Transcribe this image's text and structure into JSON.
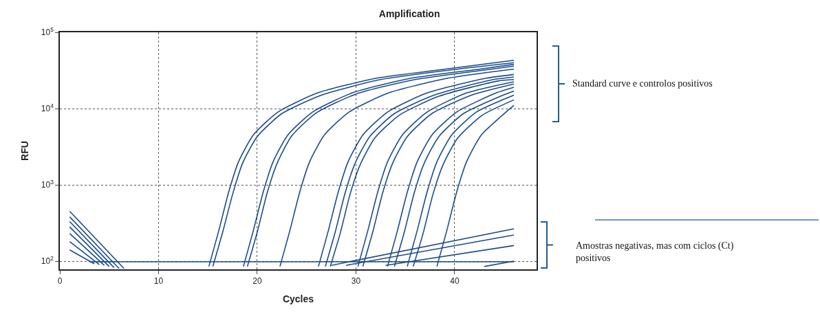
{
  "chart_data": {
    "type": "line",
    "title": "Amplification",
    "xlabel": "Cycles",
    "ylabel": "RFU",
    "xlim": [
      0,
      48.3
    ],
    "xticks": [
      0,
      10,
      20,
      30,
      40
    ],
    "ylim": [
      78,
      100000
    ],
    "log": true,
    "yticks": [
      {
        "value": 100,
        "label": "10$^{2}$"
      },
      {
        "value": 1000,
        "label": "10$^{3}$"
      },
      {
        "value": 10000,
        "label": "10$^{4}$"
      },
      {
        "value": 100000,
        "label": "10$^{5}$"
      }
    ],
    "grid": true,
    "marker": "none",
    "line_style": "solid",
    "annotations": [
      "Standard curve e controlos positivos",
      "Amostras negativas, mas com ciclos (Ct)\npositivos"
    ],
    "series": [
      {
        "color": "#1a4a8a",
        "x": [
          15.1,
          16.1,
          17.1,
          18.1,
          19.6,
          22.1,
          26.1,
          32.1,
          39.1,
          46
        ],
        "values": [
          85,
          250,
          800,
          2000,
          4500,
          9000,
          16000,
          25000,
          33000,
          43000
        ]
      },
      {
        "color": "#1a4a8a",
        "x": [
          15.5,
          16.5,
          17.5,
          18.5,
          20,
          22.5,
          26.5,
          32.5,
          39.5,
          46
        ],
        "values": [
          85,
          240,
          750,
          1900,
          4300,
          8600,
          15000,
          24000,
          32000,
          40000
        ]
      },
      {
        "color": "#1a4a8a",
        "x": [
          18.6,
          19.6,
          20.6,
          21.6,
          23.1,
          25.6,
          29.6,
          35.6,
          42.6,
          46
        ],
        "values": [
          85,
          250,
          800,
          2000,
          4500,
          9000,
          16000,
          25000,
          33000,
          38000
        ]
      },
      {
        "color": "#1a4a8a",
        "x": [
          19,
          20,
          21,
          22,
          23.5,
          26,
          30,
          36,
          43,
          46
        ],
        "values": [
          85,
          240,
          780,
          1900,
          4400,
          8800,
          15500,
          24000,
          32000,
          36000
        ]
      },
      {
        "color": "#1a4a8a",
        "x": [
          22.3,
          23.3,
          24.3,
          25.3,
          26.8,
          29.3,
          33.3,
          39.3,
          46
        ],
        "values": [
          85,
          250,
          800,
          2000,
          4500,
          9000,
          16000,
          25000,
          33000
        ]
      },
      {
        "color": "#1a4a8a",
        "x": [
          26.2,
          27.2,
          28.2,
          29.2,
          30.7,
          33.2,
          37.2,
          43.2,
          46
        ],
        "values": [
          85,
          250,
          800,
          2000,
          4500,
          9000,
          16000,
          25000,
          28000
        ]
      },
      {
        "color": "#1a4a8a",
        "x": [
          26.9,
          27.9,
          28.9,
          29.9,
          31.4,
          33.9,
          37.9,
          43.9,
          46
        ],
        "values": [
          85,
          240,
          780,
          1900,
          4300,
          8600,
          15000,
          24000,
          26000
        ]
      },
      {
        "color": "#1a4a8a",
        "x": [
          27.4,
          28.4,
          29.4,
          30.4,
          31.9,
          34.4,
          38.4,
          44.4,
          46
        ],
        "values": [
          85,
          230,
          750,
          1800,
          4100,
          8200,
          14500,
          23000,
          24000
        ]
      },
      {
        "color": "#1a4a8a",
        "x": [
          30.2,
          31.2,
          32.2,
          33.2,
          34.7,
          37.2,
          41.2,
          46
        ],
        "values": [
          85,
          250,
          800,
          2000,
          4500,
          9000,
          16000,
          22500
        ]
      },
      {
        "color": "#1a4a8a",
        "x": [
          30.7,
          31.7,
          32.7,
          33.7,
          35.2,
          37.7,
          41.7,
          46
        ],
        "values": [
          85,
          240,
          780,
          1900,
          4300,
          8600,
          15000,
          21000
        ]
      },
      {
        "color": "#1a4a8a",
        "x": [
          33.2,
          34.2,
          35.2,
          36.2,
          37.7,
          40.2,
          44.2,
          46
        ],
        "values": [
          85,
          250,
          800,
          2000,
          4500,
          9000,
          16000,
          19000
        ]
      },
      {
        "color": "#1a4a8a",
        "x": [
          33.9,
          34.9,
          35.9,
          36.9,
          38.4,
          40.9,
          44.9,
          46
        ],
        "values": [
          85,
          240,
          780,
          1900,
          4300,
          8600,
          15000,
          17000
        ]
      },
      {
        "color": "#1a4a8a",
        "x": [
          35.2,
          36.2,
          37.2,
          38.2,
          39.7,
          42.2,
          46
        ],
        "values": [
          85,
          250,
          800,
          2000,
          4500,
          9000,
          15000
        ]
      },
      {
        "color": "#1a4a8a",
        "x": [
          35.8,
          36.8,
          37.8,
          38.8,
          40.3,
          42.8,
          46
        ],
        "values": [
          85,
          230,
          750,
          1800,
          4100,
          8200,
          13000
        ]
      },
      {
        "color": "#1a4a8a",
        "x": [
          38.2,
          39.2,
          40.2,
          41.2,
          42.7,
          45.2,
          46
        ],
        "values": [
          85,
          250,
          800,
          2000,
          4500,
          9000,
          11000
        ]
      },
      {
        "color": "#1a4a8a",
        "x": [
          3,
          46
        ],
        "values": [
          98,
          98
        ]
      },
      {
        "color": "#1a4a8a",
        "x": [
          1,
          6.5
        ],
        "values": [
          450,
          80
        ]
      },
      {
        "color": "#1a4a8a",
        "x": [
          1,
          6
        ],
        "values": [
          380,
          80
        ]
      },
      {
        "color": "#1a4a8a",
        "x": [
          1,
          5.5
        ],
        "values": [
          330,
          82
        ]
      },
      {
        "color": "#1a4a8a",
        "x": [
          1,
          5
        ],
        "values": [
          280,
          85
        ]
      },
      {
        "color": "#1a4a8a",
        "x": [
          1,
          4.5
        ],
        "values": [
          230,
          88
        ]
      },
      {
        "color": "#1a4a8a",
        "x": [
          1,
          4
        ],
        "values": [
          180,
          90
        ]
      },
      {
        "color": "#1a4a8a",
        "x": [
          1,
          3.5
        ],
        "values": [
          140,
          92
        ]
      },
      {
        "color": "#1a4a8a",
        "x": [
          27.5,
          46
        ],
        "values": [
          88,
          265
        ]
      },
      {
        "color": "#1a4a8a",
        "x": [
          29,
          46
        ],
        "values": [
          88,
          220
        ]
      },
      {
        "color": "#1a4a8a",
        "x": [
          33,
          46
        ],
        "values": [
          88,
          160
        ]
      },
      {
        "color": "#1a4a8a",
        "x": [
          43,
          46
        ],
        "values": [
          85,
          100
        ]
      }
    ]
  }
}
